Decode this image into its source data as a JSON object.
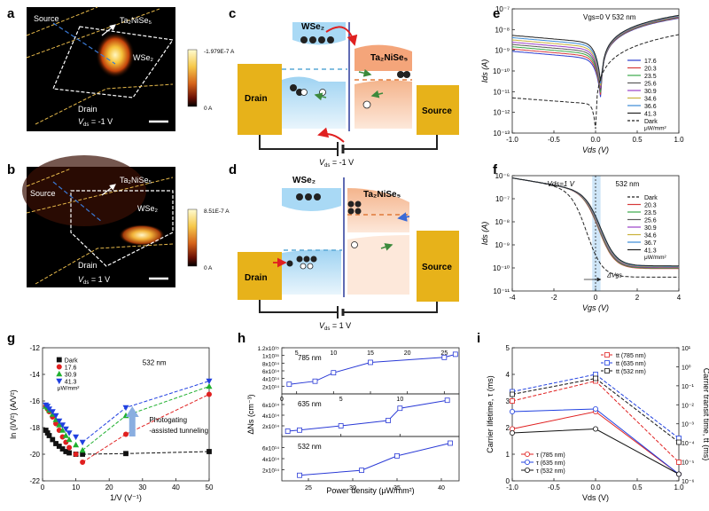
{
  "panel_labels": {
    "a": "a",
    "b": "b",
    "c": "c",
    "d": "d",
    "e": "e",
    "f": "f",
    "g": "g",
    "h": "h",
    "i": "i"
  },
  "panel_a": {
    "source": "Source",
    "drain": "Drain",
    "ta": "Ta₂NiSe₅",
    "wse": "WSe₂",
    "vds": "V",
    "vds_sub": "ds",
    "vds_val": " = -1 V",
    "cbar_top": "-1.979E-7 A",
    "cbar_bottom": "0 A"
  },
  "panel_b": {
    "source": "Source",
    "drain": "Drain",
    "ta": "Ta₂NiSe₅",
    "wse": "WSe₂",
    "vds": "V",
    "vds_sub": "ds",
    "vds_val": " = 1 V",
    "cbar_top": "8.51E-7 A",
    "cbar_bottom": "0 A"
  },
  "panel_c": {
    "wse": "WSe₂",
    "ta": "Ta₂NiSe₅",
    "drain": "Drain",
    "source": "Source",
    "vds": "V",
    "vds_sub": "ds",
    "vds_val": " = -1 V"
  },
  "panel_d": {
    "wse": "WSe₂",
    "ta": "Ta₂NiSe₅",
    "drain": "Drain",
    "source": "Source",
    "vds": "V",
    "vds_sub": "ds",
    "vds_val": " = 1 V"
  },
  "chart_data": [
    {
      "id": "e",
      "type": "line",
      "title": "Vgs=0 V  532 nm",
      "xlabel": "Vds (V)",
      "ylabel": "Ids (A)",
      "xlim": [
        -1,
        1
      ],
      "ylim_log10": [
        -13,
        -7
      ],
      "yscale": "log",
      "xticks": [
        "-1.0",
        "-0.5",
        "0.0",
        "0.5",
        "1.0"
      ],
      "yticks": [
        "10⁻⁷",
        "10⁻⁸",
        "10⁻⁹",
        "10⁻¹⁰",
        "10⁻¹¹",
        "10⁻¹²",
        "10⁻¹³"
      ],
      "legend_unit": "μW/mm²",
      "series": [
        {
          "name": "17.6",
          "color": "#2b3ccf"
        },
        {
          "name": "20.3",
          "color": "#d63a3a"
        },
        {
          "name": "23.5",
          "color": "#3aa84a"
        },
        {
          "name": "25.6",
          "color": "#5a5a5a"
        },
        {
          "name": "30.9",
          "color": "#9a3fc7"
        },
        {
          "name": "34.6",
          "color": "#c9b13a"
        },
        {
          "name": "36.6",
          "color": "#3a8ad6"
        },
        {
          "name": "41.3",
          "color": "#222222"
        },
        {
          "name": "Dark",
          "color": "#222222",
          "dashed": true
        }
      ]
    },
    {
      "id": "f",
      "type": "line",
      "title": "532 nm",
      "annotation": "Vds=1 V",
      "delta": "ΔVgs",
      "xlabel": "Vgs (V)",
      "ylabel": "Ids (A)",
      "xlim": [
        -5,
        5
      ],
      "ylim_log10": [
        -11,
        -6
      ],
      "yscale": "log",
      "xticks": [
        "-4",
        "-2",
        "0",
        "2",
        "4"
      ],
      "yticks": [
        "10⁻⁶",
        "10⁻⁷",
        "10⁻⁸",
        "10⁻⁹",
        "10⁻¹⁰",
        "10⁻¹¹"
      ],
      "legend_unit": "μW/mm²",
      "series": [
        {
          "name": "Dark",
          "color": "#222222",
          "dashed": true
        },
        {
          "name": "20.3",
          "color": "#d63a3a"
        },
        {
          "name": "23.5",
          "color": "#3aa84a"
        },
        {
          "name": "25.6",
          "color": "#5a5a5a"
        },
        {
          "name": "30.9",
          "color": "#9a3fc7"
        },
        {
          "name": "34.6",
          "color": "#c9b13a"
        },
        {
          "name": "36.7",
          "color": "#3a8ad6"
        },
        {
          "name": "41.3",
          "color": "#222222"
        }
      ]
    },
    {
      "id": "g",
      "type": "scatter",
      "title": "532 nm",
      "annotation": "Photogating -assisted tunneling",
      "xlabel": "1/V (V⁻¹)",
      "ylabel": "ln (I/V²) (A/V²)",
      "xlim": [
        0,
        50
      ],
      "ylim": [
        -22,
        -12
      ],
      "xticks": [
        "0",
        "10",
        "20",
        "30",
        "40",
        "50"
      ],
      "yticks": [
        "-12",
        "-14",
        "-16",
        "-18",
        "-20",
        "-22"
      ],
      "legend_unit": "μW/mm²",
      "series": [
        {
          "name": "Dark",
          "color": "#111111",
          "marker": "square",
          "x": [
            1,
            1.5,
            2,
            3,
            4,
            5,
            6,
            7,
            8,
            10,
            12,
            25,
            50
          ],
          "y": [
            -18.2,
            -18.4,
            -18.6,
            -18.9,
            -19.2,
            -19.4,
            -19.6,
            -19.8,
            -19.9,
            -20.0,
            -20.0,
            -19.95,
            -19.8
          ]
        },
        {
          "name": "17.6",
          "color": "#e02020",
          "marker": "circle",
          "x": [
            1,
            1.5,
            2,
            3,
            4,
            5,
            6,
            7,
            8,
            10,
            12,
            25,
            50
          ],
          "y": [
            -16.4,
            -16.6,
            -16.8,
            -17.2,
            -17.7,
            -18.2,
            -18.7,
            -19.1,
            -19.5,
            -20.0,
            -20.6,
            -18.5,
            -15.5
          ]
        },
        {
          "name": "30.9",
          "color": "#20b030",
          "marker": "triangle",
          "x": [
            1,
            1.5,
            2,
            3,
            4,
            5,
            6,
            7,
            8,
            10,
            12,
            25,
            50
          ],
          "y": [
            -16.4,
            -16.5,
            -16.7,
            -17.0,
            -17.4,
            -17.8,
            -18.2,
            -18.6,
            -18.9,
            -19.3,
            -19.7,
            -17.1,
            -14.9
          ]
        },
        {
          "name": "41.3",
          "color": "#2040e0",
          "marker": "triangle-down",
          "x": [
            1,
            1.5,
            2,
            3,
            4,
            5,
            6,
            7,
            8,
            10,
            12,
            25,
            50
          ],
          "y": [
            -16.3,
            -16.4,
            -16.6,
            -16.8,
            -17.1,
            -17.5,
            -17.8,
            -18.1,
            -18.4,
            -18.7,
            -19.1,
            -16.5,
            -14.5
          ]
        }
      ]
    },
    {
      "id": "h",
      "type": "line",
      "xlabel": "Power density (μW/mm²)",
      "ylabel": "ΔNs (cm⁻³)",
      "subplots": [
        {
          "label": "785 nm",
          "xlim": [
            3,
            27
          ],
          "xticks": [
            "5",
            "10",
            "15",
            "20",
            "25"
          ],
          "ylim": [
            0,
            12
          ],
          "yticks": [
            "2x10¹⁴",
            "4x10¹⁴",
            "6x10¹⁴",
            "8x10¹⁴",
            "1x10¹⁵",
            "1.2x10¹⁵"
          ],
          "x": [
            4,
            7.5,
            10,
            15,
            25,
            26.5
          ],
          "y": [
            2.5,
            3.3,
            5.5,
            8.2,
            9.5,
            10.3
          ]
        },
        {
          "label": "635 nm",
          "xlim": [
            0,
            15
          ],
          "xticks": [
            "0",
            "5",
            "10"
          ],
          "ylim": [
            0,
            8
          ],
          "yticks": [
            "2x10¹⁴",
            "4x10¹⁴",
            "6x10¹⁴"
          ],
          "x": [
            0.5,
            1.5,
            5,
            9,
            10,
            14
          ],
          "y": [
            1.0,
            1.2,
            2.0,
            3.0,
            5.3,
            6.8
          ]
        },
        {
          "label": "532 nm",
          "xlim": [
            22,
            42
          ],
          "xticks": [
            "25",
            "30",
            "35",
            "40"
          ],
          "ylim": [
            0,
            8
          ],
          "yticks": [
            "2x10¹⁴",
            "4x10¹⁴",
            "6x10¹⁴"
          ],
          "x": [
            24,
            31,
            35,
            41
          ],
          "y": [
            1.0,
            1.9,
            4.5,
            6.8
          ]
        }
      ]
    },
    {
      "id": "i",
      "type": "line",
      "xlabel": "Vds (V)",
      "ylabel": "Carrier lifetime, τ (ms)",
      "ylabel_right": "Carrier transit time, tt (ms)",
      "xlim": [
        -1,
        1
      ],
      "ylim": [
        0,
        5
      ],
      "xticks": [
        "-1.0",
        "-0.5",
        "0.0",
        "0.5",
        "1.0"
      ],
      "yticks": [
        "0",
        "1",
        "2",
        "3",
        "4",
        "5"
      ],
      "yticks_right": [
        "10⁻⁶",
        "10⁻⁵",
        "10⁻⁴",
        "10⁻³",
        "10⁻²",
        "10⁻¹",
        "10⁰",
        "10¹"
      ],
      "series": [
        {
          "name": "τ (785 nm)",
          "color": "#e02020",
          "marker": "circle",
          "x": [
            -1,
            0,
            1
          ],
          "y": [
            1.95,
            2.6,
            0.25
          ]
        },
        {
          "name": "τ (635 nm)",
          "color": "#2040e0",
          "marker": "circle",
          "x": [
            -1,
            0,
            1
          ],
          "y": [
            2.6,
            2.7,
            0.25
          ]
        },
        {
          "name": "τ (532 nm)",
          "color": "#111111",
          "marker": "circle",
          "x": [
            -1,
            0,
            1
          ],
          "y": [
            1.8,
            1.95,
            0.25
          ]
        },
        {
          "name": "tt (785 nm)",
          "color": "#e02020",
          "marker": "square",
          "dashed": true,
          "x": [
            -1,
            0,
            1
          ],
          "y": [
            3.0,
            3.75,
            0.7
          ]
        },
        {
          "name": "tt (635 nm)",
          "color": "#2040e0",
          "marker": "square",
          "dashed": true,
          "x": [
            -1,
            0,
            1
          ],
          "y": [
            3.35,
            4.0,
            1.6
          ]
        },
        {
          "name": "tt (532 nm)",
          "color": "#111111",
          "marker": "square",
          "dashed": true,
          "x": [
            -1,
            0,
            1
          ],
          "y": [
            3.25,
            3.85,
            1.45
          ]
        }
      ]
    }
  ]
}
